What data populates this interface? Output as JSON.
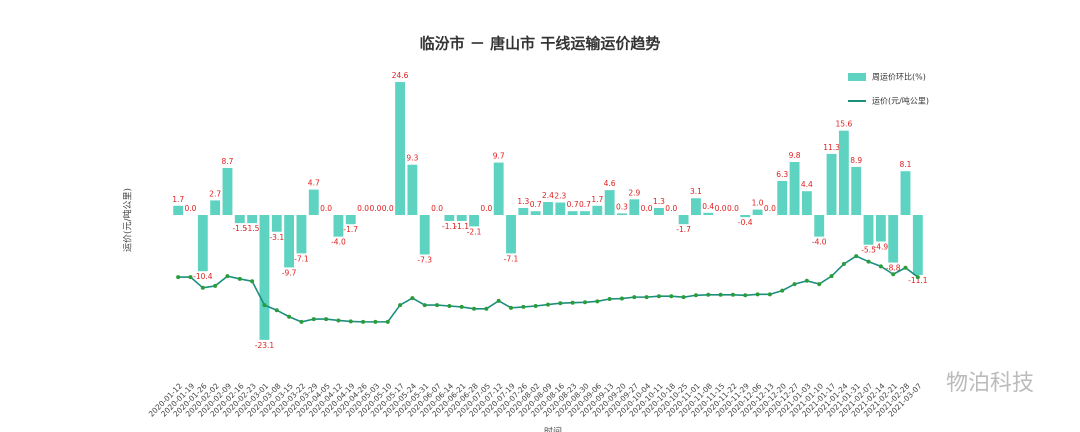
{
  "chart_data": {
    "type": "bar-line",
    "title": "临汾市 － 唐山市 干线运输运价趋势",
    "x_label": "时间",
    "y_label": "运价(元/吨公里)",
    "watermark": "物泊科技",
    "categories": [
      "2020-01-12",
      "2020-01-19",
      "2020-01-26",
      "2020-02-02",
      "2020-02-09",
      "2020-02-16",
      "2020-02-23",
      "2020-03-01",
      "2020-03-08",
      "2020-03-15",
      "2020-03-22",
      "2020-03-29",
      "2020-04-05",
      "2020-04-12",
      "2020-04-19",
      "2020-04-26",
      "2020-05-03",
      "2020-05-10",
      "2020-05-17",
      "2020-05-24",
      "2020-05-31",
      "2020-06-07",
      "2020-06-14",
      "2020-06-21",
      "2020-06-28",
      "2020-07-05",
      "2020-07-12",
      "2020-07-19",
      "2020-07-26",
      "2020-08-02",
      "2020-08-09",
      "2020-08-16",
      "2020-08-23",
      "2020-08-30",
      "2020-09-06",
      "2020-09-13",
      "2020-09-20",
      "2020-09-27",
      "2020-10-04",
      "2020-10-11",
      "2020-10-18",
      "2020-10-25",
      "2020-11-01",
      "2020-11-08",
      "2020-11-15",
      "2020-11-22",
      "2020-11-29",
      "2020-12-06",
      "2020-12-13",
      "2020-12-20",
      "2020-12-27",
      "2021-01-03",
      "2021-01-10",
      "2021-01-17",
      "2021-01-24",
      "2021-01-31",
      "2021-02-07",
      "2021-02-14",
      "2021-02-21",
      "2021-02-28",
      "2021-03-07"
    ],
    "series": [
      {
        "name": "周运价环比(%)",
        "type": "bar",
        "color": "#5ed3c2",
        "values": [
          1.7,
          0.0,
          -10.4,
          2.7,
          8.7,
          -1.5,
          -1.5,
          -23.1,
          -3.1,
          -9.7,
          -7.1,
          4.7,
          0.0,
          -4.0,
          -1.7,
          0.0,
          0.0,
          0.0,
          24.6,
          9.3,
          -7.3,
          0.0,
          -1.1,
          -1.1,
          -2.1,
          0.0,
          9.7,
          -7.1,
          1.3,
          0.7,
          2.4,
          2.3,
          0.7,
          0.7,
          1.7,
          4.6,
          0.3,
          2.9,
          0.0,
          1.3,
          0.0,
          -1.7,
          3.1,
          0.4,
          0.0,
          0.0,
          -0.4,
          1.0,
          0.0,
          6.3,
          9.8,
          4.4,
          -4.0,
          11.3,
          15.6,
          8.9,
          -5.5,
          -4.9,
          -8.8,
          8.1,
          -11.1
        ],
        "value_labels": [
          "1.7",
          "0.0",
          "-10.4",
          "2.7",
          "8.7",
          "-1.5",
          "-1.5",
          "-23.1",
          "-3.1",
          "-9.7",
          "-7.1",
          "4.7",
          "0.0",
          "-4.0",
          "-1.7",
          "0.0",
          "0.0",
          "0.0",
          "24.6",
          "9.3",
          "-7.3",
          "0.0",
          "-1.1",
          "-1.1",
          "-2.1",
          "0.0",
          "9.7",
          "-7.1",
          "1.3",
          "0.7",
          "2.4",
          "2.3",
          "0.7",
          "0.7",
          "1.7",
          "4.6",
          "0.3",
          "2.9",
          "0.0",
          "1.3",
          "0.0",
          "-1.7",
          "3.1",
          "0.4",
          "0.0",
          "0.0",
          "-0.4",
          "1.0",
          "0.0",
          "6.3",
          "9.8",
          "4.4",
          "-4.0",
          "11.3",
          "15.6",
          "8.9",
          "-5.5",
          "-4.9",
          "-8.8",
          "8.1",
          "-11.1"
        ]
      },
      {
        "name": "运价(元/吨公里)",
        "type": "line",
        "axis": "y2",
        "color": "#1b8f7e",
        "values": [
          0.167,
          0.167,
          0.144,
          0.148,
          0.169,
          0.163,
          0.158,
          0.107,
          0.096,
          0.082,
          0.071,
          0.077,
          0.077,
          0.074,
          0.072,
          0.071,
          0.071,
          0.071,
          0.107,
          0.122,
          0.107,
          0.107,
          0.105,
          0.103,
          0.099,
          0.099,
          0.116,
          0.101,
          0.103,
          0.105,
          0.108,
          0.111,
          0.112,
          0.113,
          0.115,
          0.12,
          0.121,
          0.124,
          0.124,
          0.126,
          0.126,
          0.124,
          0.128,
          0.129,
          0.129,
          0.129,
          0.128,
          0.13,
          0.13,
          0.138,
          0.152,
          0.159,
          0.152,
          0.169,
          0.195,
          0.212,
          0.2,
          0.19,
          0.173,
          0.187,
          0.167
        ]
      }
    ],
    "ylim": [
      -25.9,
      25.9
    ],
    "y2lim": [
      0,
      0.6
    ],
    "legend": "upper right"
  }
}
